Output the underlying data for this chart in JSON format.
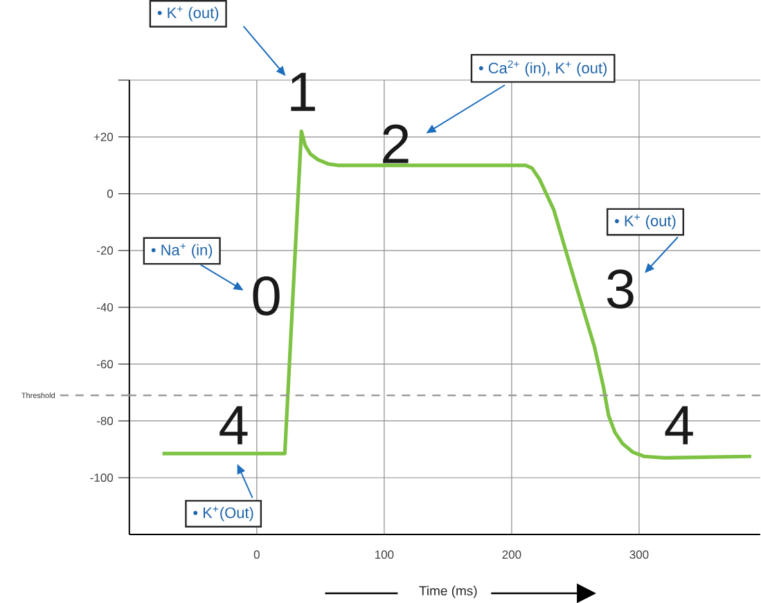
{
  "chart_data": {
    "type": "line",
    "xlabel": "Time (ms)",
    "x": [
      -74,
      22,
      35,
      38,
      42,
      48,
      56,
      64,
      211,
      216,
      222,
      233,
      249,
      265,
      272,
      276,
      281,
      287,
      295,
      304,
      320,
      388
    ],
    "series": [
      {
        "color": "#7dc242",
        "values": [
          -91.5,
          -91.5,
          22,
          17,
          14,
          12,
          10.5,
          10,
          10,
          9,
          5,
          -5.6,
          -30,
          -54,
          -68,
          -78,
          -84,
          -88,
          -91,
          -92.5,
          -93,
          -92.5
        ]
      }
    ],
    "xlim": [
      -100,
      395
    ],
    "ylim": [
      -120,
      40
    ],
    "xticks": [
      0,
      100,
      200,
      300
    ],
    "yticks": [
      {
        "value": 40,
        "label": null
      },
      {
        "value": 20,
        "label": "+20"
      },
      0,
      -20,
      -40,
      -60,
      -80,
      -100
    ],
    "grid": true,
    "marker": "none",
    "line_style": "solid",
    "ref_lines": [
      {
        "axis": "y",
        "value": -71,
        "label": "Threshold",
        "color": "#999999",
        "line_style": "dashed"
      }
    ],
    "annotations": [
      "1",
      "2",
      "0",
      "3",
      "4",
      "4",
      "• K$^{+}$ (out)",
      "• Ca$^{2+}$ (in), K$^{+}$ (out)",
      "• Na$^{+}$ (in)",
      "• K$^{+}$ (out)",
      "• K$^{+}$(Out)"
    ]
  }
}
